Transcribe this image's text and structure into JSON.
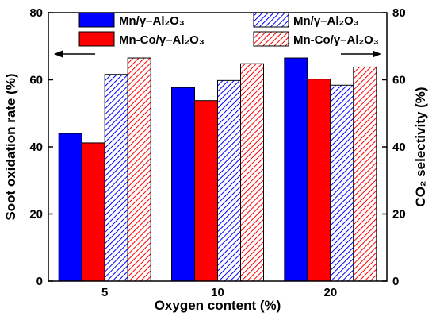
{
  "chart_data": {
    "type": "bar",
    "xlabel": "Oxygen content (%)",
    "ylabel_left": "Soot oxidation rate (%)",
    "ylabel_right": "CO₂ selectivity (%)",
    "categories": [
      "5",
      "10",
      "20"
    ],
    "ylim": [
      0,
      80
    ],
    "yticks": [
      0,
      20,
      40,
      60,
      80
    ],
    "grid": false,
    "legend_position": "top",
    "axis_arrows": {
      "left_axis": "points left",
      "right_axis": "points right"
    },
    "series": [
      {
        "name": "Mn/γ–Al₂O₃",
        "axis": "left",
        "values": [
          44,
          57.7,
          66.5
        ],
        "color": "#0000ff",
        "pattern": "solid"
      },
      {
        "name": "Mn-Co/γ–Al₂O₃",
        "axis": "left",
        "values": [
          41.2,
          53.8,
          60.2
        ],
        "color": "#ff0000",
        "pattern": "solid"
      },
      {
        "name": "Mn/γ–Al₂O₃",
        "axis": "right",
        "values": [
          61.6,
          59.8,
          58.4
        ],
        "color": "#0000ff",
        "pattern": "hatched"
      },
      {
        "name": "Mn-Co/γ–Al₂O₃",
        "axis": "right",
        "values": [
          66.5,
          64.8,
          63.8
        ],
        "color": "#ff0000",
        "pattern": "hatched"
      }
    ]
  }
}
